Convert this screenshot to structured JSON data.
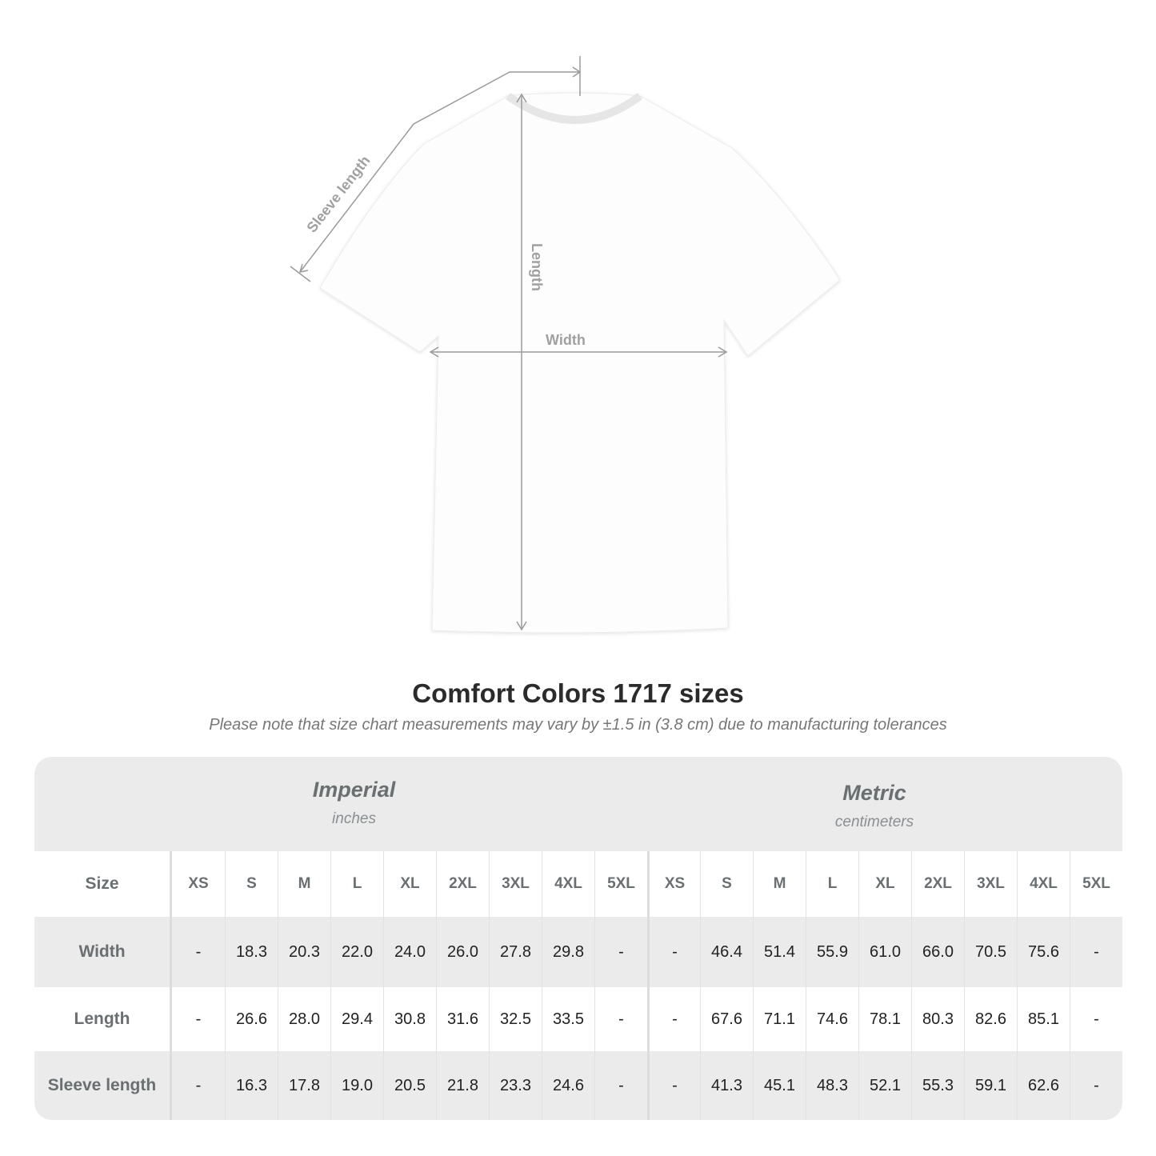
{
  "diagram_labels": {
    "sleeve": "Sleeve length",
    "length": "Length",
    "width": "Width"
  },
  "title": "Comfort Colors 1717 sizes",
  "note": "Please note that size chart measurements may vary by ±1.5 in (3.8 cm) due to manufacturing tolerances",
  "groups": [
    {
      "name": "Imperial",
      "unit": "inches"
    },
    {
      "name": "Metric",
      "unit": "centimeters"
    }
  ],
  "size_label": "Size",
  "sizes": [
    "XS",
    "S",
    "M",
    "L",
    "XL",
    "2XL",
    "3XL",
    "4XL",
    "5XL"
  ],
  "rows": [
    {
      "label": "Width",
      "imperial": [
        "-",
        "18.3",
        "20.3",
        "22.0",
        "24.0",
        "26.0",
        "27.8",
        "29.8",
        "-"
      ],
      "metric": [
        "-",
        "46.4",
        "51.4",
        "55.9",
        "61.0",
        "66.0",
        "70.5",
        "75.6",
        "-"
      ]
    },
    {
      "label": "Length",
      "imperial": [
        "-",
        "26.6",
        "28.0",
        "29.4",
        "30.8",
        "31.6",
        "32.5",
        "33.5",
        "-"
      ],
      "metric": [
        "-",
        "67.6",
        "71.1",
        "74.6",
        "78.1",
        "80.3",
        "82.6",
        "85.1",
        "-"
      ]
    },
    {
      "label": "Sleeve length",
      "imperial": [
        "-",
        "16.3",
        "17.8",
        "19.0",
        "20.5",
        "21.8",
        "23.3",
        "24.6",
        "-"
      ],
      "metric": [
        "-",
        "41.3",
        "45.1",
        "48.3",
        "52.1",
        "55.3",
        "59.1",
        "62.6",
        "-"
      ]
    }
  ],
  "colors": {
    "header_bg": "#ebebeb",
    "label_text": "#6a6f72",
    "measure_line": "#9a9a9a"
  }
}
